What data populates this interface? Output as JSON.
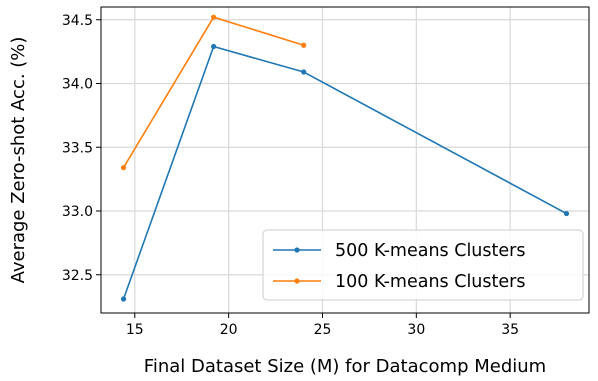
{
  "chart_data": {
    "type": "line",
    "title": "",
    "xlabel": "Final Dataset Size (M) for Datacomp Medium",
    "ylabel": "Average Zero-shot Acc. (%)",
    "xlim": [
      13.2,
      39.2
    ],
    "ylim": [
      32.2,
      34.6
    ],
    "xticks": [
      15,
      20,
      25,
      30,
      35
    ],
    "yticks": [
      32.5,
      33.0,
      33.5,
      34.0,
      34.5
    ],
    "xtick_labels": [
      "15",
      "20",
      "25",
      "30",
      "35"
    ],
    "ytick_labels": [
      "32.5",
      "33.0",
      "33.5",
      "34.0",
      "34.5"
    ],
    "grid": true,
    "legend_position": "bottom-right",
    "series": [
      {
        "name": "500 K-means Clusters",
        "color": "#1f77b4",
        "x": [
          14.4,
          19.2,
          24.0,
          38.0
        ],
        "y": [
          32.31,
          34.29,
          34.09,
          32.98
        ]
      },
      {
        "name": "100 K-means Clusters",
        "color": "#ff7f0e",
        "x": [
          14.4,
          19.2,
          24.0
        ],
        "y": [
          33.34,
          34.52,
          34.3
        ]
      }
    ]
  }
}
